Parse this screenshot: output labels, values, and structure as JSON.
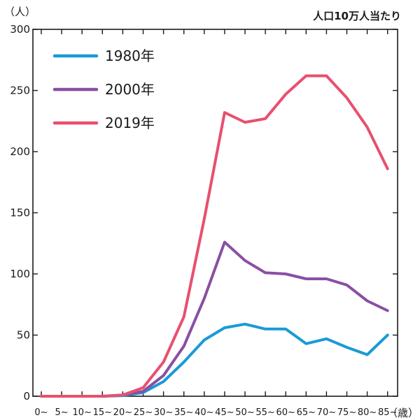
{
  "chart_data": {
    "type": "line",
    "ylabel": "（人）",
    "xlabel": "（歳）",
    "note": "人口10万人当たり",
    "ylim": [
      0,
      300
    ],
    "yticks": [
      0,
      50,
      100,
      150,
      200,
      250,
      300
    ],
    "grid": false,
    "legend_position": "top-left",
    "x": [
      "0~",
      "5~",
      "10~",
      "15~",
      "20~",
      "25~",
      "30~",
      "35~",
      "40~",
      "45~",
      "50~",
      "55~",
      "60~",
      "65~",
      "70~",
      "75~",
      "80~",
      "85~"
    ],
    "series": [
      {
        "name": "1980年",
        "color": "#1a9ad6",
        "values": [
          0,
          0,
          0,
          0,
          0.5,
          3,
          12,
          28,
          46,
          56,
          59,
          55,
          55,
          43,
          47,
          40,
          34,
          50
        ]
      },
      {
        "name": "2000年",
        "color": "#8a4fa3",
        "values": [
          0,
          0,
          0,
          0,
          1,
          4,
          17,
          41,
          80,
          126,
          111,
          101,
          100,
          96,
          96,
          91,
          78,
          70
        ]
      },
      {
        "name": "2019年",
        "color": "#e8506e",
        "values": [
          0,
          0,
          0,
          0,
          1,
          7,
          28,
          65,
          145,
          232,
          224,
          227,
          247,
          262,
          262,
          244,
          220,
          186
        ]
      }
    ]
  }
}
